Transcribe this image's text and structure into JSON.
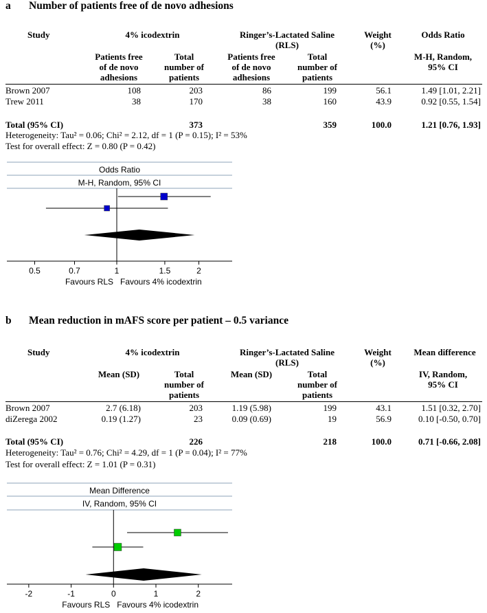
{
  "panels": [
    {
      "letter": "a",
      "title": "Number of patients free of de novo adhesions",
      "header": {
        "study": "Study",
        "group1": "4% icodextrin",
        "group2_line1": "Ringer’s-Lactated Saline",
        "group2_line2": "(RLS)",
        "weight_line1": "Weight",
        "weight_line2": "(%)",
        "effect": "Odds Ratio",
        "g1_sub1": [
          "Patients free",
          "of de novo",
          "adhesions"
        ],
        "g1_sub2": [
          "Total",
          "number of",
          "patients"
        ],
        "g2_sub1": [
          "Patients free",
          "of de novo",
          "adhesions"
        ],
        "g2_sub2": [
          "Total",
          "number of",
          "patients"
        ],
        "effect_sub": [
          "M-H, Random,",
          "95% CI"
        ]
      },
      "rows": [
        {
          "study": "Brown 2007",
          "g1a": "108",
          "g1b": "203",
          "g2a": "86",
          "g2b": "199",
          "weight": "56.1",
          "effect": "1.49 [1.01, 2.21]"
        },
        {
          "study": "Trew 2011",
          "g1a": "38",
          "g1b": "170",
          "g2a": "38",
          "g2b": "160",
          "weight": "43.9",
          "effect": "0.92 [0.55, 1.54]"
        }
      ],
      "total": {
        "label": "Total (95% CI)",
        "g1b": "373",
        "g2b": "359",
        "weight": "100.0",
        "effect": "1.21 [0.76, 1.93]"
      },
      "heterogeneity": "Heterogeneity: Tau² = 0.06; Chi² = 2.12, df = 1 (P = 0.15); I² = 53%",
      "overall": "Test for overall effect: Z = 0.80 (P = 0.42)"
    },
    {
      "letter": "b",
      "title": "Mean reduction in mAFS score per patient – 0.5 variance",
      "header": {
        "study": "Study",
        "group1": "4% icodextrin",
        "group2_line1": "Ringer’s-Lactated Saline",
        "group2_line2": "(RLS)",
        "weight_line1": "Weight",
        "weight_line2": "(%)",
        "effect": "Mean difference",
        "g1_sub1": [
          "Mean (SD)"
        ],
        "g1_sub2": [
          "Total",
          "number of",
          "patients"
        ],
        "g2_sub1": [
          "Mean (SD)"
        ],
        "g2_sub2": [
          "Total",
          "number of",
          "patients"
        ],
        "effect_sub": [
          "IV, Random,",
          "95% CI"
        ]
      },
      "rows": [
        {
          "study": "Brown 2007",
          "g1a": "2.7 (6.18)",
          "g1b": "203",
          "g2a": "1.19 (5.98)",
          "g2b": "199",
          "weight": "43.1",
          "effect": "1.51 [0.32, 2.70]"
        },
        {
          "study": "diZerega 2002",
          "g1a": "0.19 (1.27)",
          "g1b": "23",
          "g2a": "0.09 (0.69)",
          "g2b": "19",
          "weight": "56.9",
          "effect": "0.10 [-0.50, 0.70]"
        }
      ],
      "total": {
        "label": "Total (95% CI)",
        "g1b": "226",
        "g2b": "218",
        "weight": "100.0",
        "effect": "0.71 [-0.66, 2.08]"
      },
      "heterogeneity": "Heterogeneity: Tau² = 0.76; Chi² = 4.29, df = 1 (P = 0.04); I² = 77%",
      "overall": "Test for overall effect: Z = 1.01 (P = 0.31)"
    }
  ],
  "chart_data": [
    {
      "type": "forest",
      "title": "Odds Ratio",
      "subtitle": "M-H, Random, 95% CI",
      "scale": "log",
      "xlim": [
        0.4,
        2.5
      ],
      "ticks": [
        0.5,
        0.7,
        1,
        1.5,
        2
      ],
      "tick_labels": [
        "0.5",
        "0.7",
        "1",
        "1.5",
        "2"
      ],
      "null_value": 1,
      "xlabel_left": "Favours RLS",
      "xlabel_right": "Favours 4% icodextrin",
      "marker_color": "#0000cc",
      "studies": [
        {
          "name": "Brown 2007",
          "estimate": 1.49,
          "lower": 1.01,
          "upper": 2.21,
          "weight": 56.1
        },
        {
          "name": "Trew 2011",
          "estimate": 0.92,
          "lower": 0.55,
          "upper": 1.54,
          "weight": 43.9
        }
      ],
      "pooled": {
        "estimate": 1.21,
        "lower": 0.76,
        "upper": 1.93
      }
    },
    {
      "type": "forest",
      "title": "Mean Difference",
      "subtitle": "IV, Random, 95% CI",
      "scale": "linear",
      "xlim": [
        -2.5,
        2.75
      ],
      "ticks": [
        -2,
        -1,
        0,
        1,
        2
      ],
      "tick_labels": [
        "-2",
        "-1",
        "0",
        "1",
        "2"
      ],
      "null_value": 0,
      "xlabel_left": "Favours RLS",
      "xlabel_right": "Favours 4% icodextrin",
      "marker_color": "#00cc00",
      "studies": [
        {
          "name": "Brown 2007",
          "estimate": 1.51,
          "lower": 0.32,
          "upper": 2.7,
          "weight": 43.1
        },
        {
          "name": "diZerega 2002",
          "estimate": 0.1,
          "lower": -0.5,
          "upper": 0.7,
          "weight": 56.9
        }
      ],
      "pooled": {
        "estimate": 0.71,
        "lower": -0.66,
        "upper": 2.08
      }
    }
  ]
}
